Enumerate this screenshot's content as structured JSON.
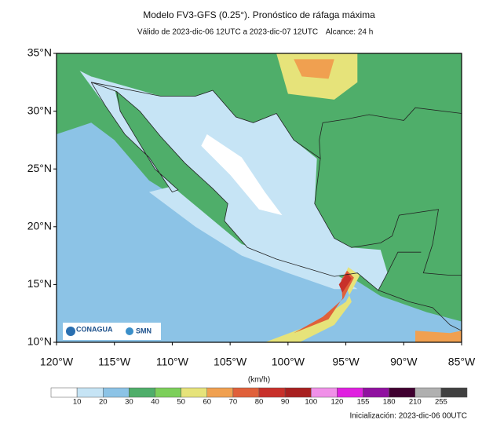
{
  "header": {
    "title": "Modelo FV3-GFS (0.25°). Pronóstico de ráfaga máxima",
    "valid": "Válido de 2023-dic-06 12UTC a 2023-dic-07 12UTC",
    "range": "Alcance: 24 h"
  },
  "map": {
    "lat_labels": [
      "35°N",
      "30°N",
      "25°N",
      "20°N",
      "15°N",
      "10°N"
    ],
    "lon_labels": [
      "120°W",
      "115°W",
      "110°W",
      "105°W",
      "100°W",
      "95°W",
      "90°W",
      "85°W"
    ],
    "logos": [
      "CONAGUA",
      "SMN"
    ]
  },
  "colorbar": {
    "unit": "(km/h)",
    "levels": [
      10,
      20,
      30,
      40,
      50,
      60,
      70,
      80,
      90,
      100,
      120,
      155,
      180,
      210,
      255
    ],
    "colors": [
      "#ffffff",
      "#c6e4f5",
      "#8cc3e6",
      "#4fae6a",
      "#7ccf5a",
      "#e6e37a",
      "#f0a050",
      "#e0603a",
      "#c8302a",
      "#a82020",
      "#f090e8",
      "#e020e0",
      "#9010a0",
      "#400030",
      "#b0b0b0",
      "#404040"
    ]
  },
  "footer": {
    "init": "Inicialización: 2023-dic-06 00UTC"
  }
}
